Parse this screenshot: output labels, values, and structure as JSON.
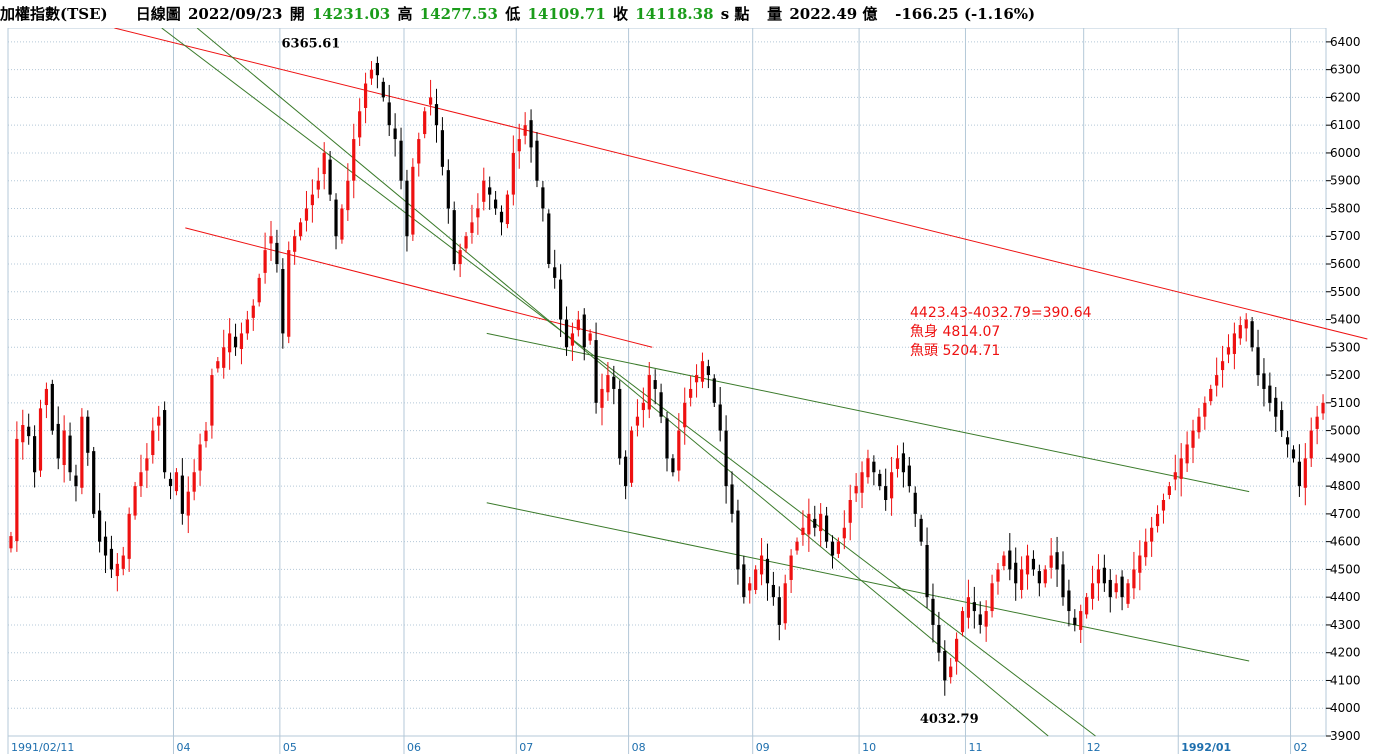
{
  "header": {
    "name": "加權指數(TSE)",
    "period": "日線圖",
    "date": "2022/09/23",
    "open_label": "開",
    "open": "14231.03",
    "high_label": "高",
    "high": "14277.53",
    "low_label": "低",
    "low": "14109.71",
    "close_label": "收",
    "close": "14118.38",
    "unit": "s 點",
    "volume_label": "量",
    "volume": "2022.49 億",
    "change": "-166.25 (-1.16%)"
  },
  "colors": {
    "up": "#ee1111",
    "down": "#000000",
    "grid": "#b4c8d8",
    "axis_text": "#1e6fae",
    "trend_red": "#ee1111",
    "trend_green": "#3a7a2a"
  },
  "chart_data": {
    "type": "candlestick",
    "ylim": [
      3900,
      6450
    ],
    "y_ticks": [
      3900,
      4000,
      4100,
      4200,
      4300,
      4400,
      4500,
      4600,
      4700,
      4800,
      4900,
      5000,
      5100,
      5200,
      5300,
      5400,
      5500,
      5600,
      5700,
      5800,
      5900,
      6000,
      6100,
      6200,
      6300,
      6400
    ],
    "x_ticks": [
      {
        "label": "1991/02/11",
        "x": 0
      },
      {
        "label": "04",
        "x": 28
      },
      {
        "label": "05",
        "x": 46
      },
      {
        "label": "06",
        "x": 67
      },
      {
        "label": "07",
        "x": 86
      },
      {
        "label": "08",
        "x": 105
      },
      {
        "label": "09",
        "x": 126
      },
      {
        "label": "10",
        "x": 144
      },
      {
        "label": "11",
        "x": 162
      },
      {
        "label": "12",
        "x": 182
      },
      {
        "label": "1992/01",
        "x": 198
      },
      {
        "label": "02",
        "x": 217
      }
    ],
    "annotations": {
      "peak": {
        "text": "6365.61",
        "x": 50,
        "value": 6365.61
      },
      "trough": {
        "text": "4032.79",
        "x": 158,
        "value": 4032.79
      },
      "note_lines": [
        "4423.43-4032.79=390.64",
        "魚身 4814.07",
        "魚頭 5204.71"
      ]
    },
    "trend_lines": [
      {
        "color": "red",
        "from": [
          18,
          6450
        ],
        "to": [
          230,
          5330
        ]
      },
      {
        "color": "red",
        "from": [
          30,
          5730
        ],
        "to": [
          109,
          5300
        ]
      },
      {
        "color": "green",
        "from": [
          32,
          6450
        ],
        "to": [
          176,
          3900
        ]
      },
      {
        "color": "green",
        "from": [
          26,
          6450
        ],
        "to": [
          184,
          3900
        ]
      },
      {
        "color": "green",
        "from": [
          81,
          5350
        ],
        "to": [
          210,
          4780
        ]
      },
      {
        "color": "green",
        "from": [
          81,
          4740
        ],
        "to": [
          210,
          4170
        ]
      }
    ],
    "closes": [
      4620,
      4970,
      5020,
      4980,
      4850,
      5080,
      5150,
      5000,
      4900,
      5000,
      4850,
      4800,
      5050,
      4920,
      4700,
      4600,
      4550,
      4500,
      4520,
      4550,
      4700,
      4800,
      4850,
      4900,
      5000,
      5050,
      4850,
      4800,
      4850,
      4700,
      4780,
      4850,
      4950,
      5000,
      5200,
      5250,
      5300,
      5350,
      5300,
      5350,
      5400,
      5450,
      5550,
      5650,
      5700,
      5600,
      5350,
      5650,
      5700,
      5750,
      5800,
      5850,
      5900,
      6000,
      5850,
      5700,
      5800,
      5900,
      6050,
      6150,
      6250,
      6300,
      6280,
      6200,
      6100,
      6050,
      5900,
      5700,
      5950,
      6050,
      6150,
      6200,
      6100,
      5950,
      5800,
      5600,
      5650,
      5700,
      5750,
      5800,
      5900,
      5850,
      5800,
      5750,
      5850,
      6000,
      6050,
      6100,
      6020,
      5900,
      5800,
      5600,
      5550,
      5400,
      5300,
      5350,
      5400,
      5300,
      5350,
      5100,
      5150,
      5200,
      5150,
      4900,
      4800,
      5000,
      5050,
      5100,
      5200,
      5150,
      5050,
      4900,
      4850,
      5000,
      5100,
      5150,
      5200,
      5250,
      5200,
      5100,
      5000,
      4800,
      4700,
      4500,
      4400,
      4450,
      4500,
      4550,
      4450,
      4400,
      4300,
      4450,
      4550,
      4600,
      4650,
      4700,
      4650,
      4700,
      4600,
      4550,
      4600,
      4650,
      4750,
      4800,
      4850,
      4900,
      4850,
      4800,
      4750,
      4850,
      4900,
      4850,
      4800,
      4700,
      4600,
      4400,
      4300,
      4200,
      4100,
      4150,
      4250,
      4350,
      4400,
      4350,
      4300,
      4350,
      4450,
      4500,
      4550,
      4500,
      4450,
      4500,
      4550,
      4500,
      4450,
      4500,
      4550,
      4500,
      4400,
      4350,
      4300,
      4350,
      4400,
      4450,
      4500,
      4450,
      4400,
      4450,
      4400,
      4450,
      4500,
      4550,
      4600,
      4650,
      4700,
      4750,
      4800,
      4850,
      4900,
      4950,
      5000,
      5050,
      5100,
      5150,
      5200,
      5250,
      5300,
      5350,
      5380,
      5400,
      5300,
      5200,
      5150,
      5100,
      5050,
      5000,
      4950,
      4900,
      4800,
      4900,
      5000,
      5050,
      5100
    ]
  }
}
